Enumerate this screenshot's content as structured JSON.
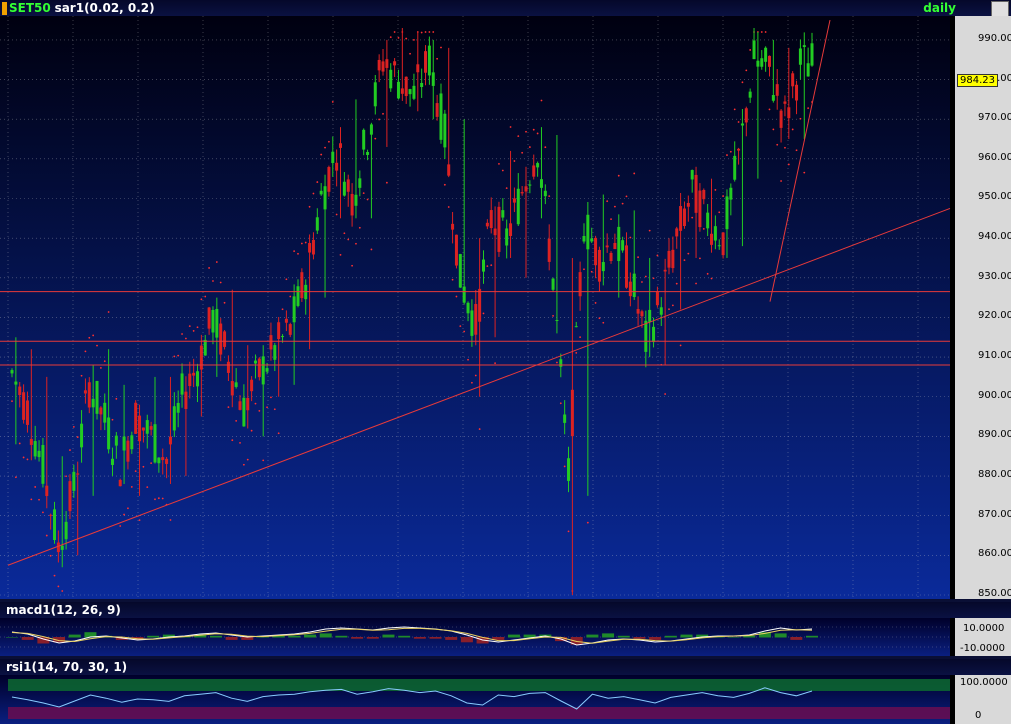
{
  "header": {
    "symbol": "SET50",
    "indicator": "sar1(0.02, 0.2)",
    "period": "daily"
  },
  "price_axis": {
    "ticks": [
      "990.00",
      "980.00",
      "970.00",
      "960.00",
      "950.00",
      "940.00",
      "930.00",
      "920.00",
      "910.00",
      "900.00",
      "890.00",
      "880.00",
      "870.00",
      "860.00",
      "850.00"
    ],
    "last_price": "984.23"
  },
  "macd_panel": {
    "title": "macd1(12, 26, 9)",
    "ticks": [
      "10.0000",
      "-10.0000"
    ]
  },
  "rsi_panel": {
    "title": "rsi1(14, 70, 30, 1)",
    "ticks": [
      "100.0000",
      "0"
    ]
  },
  "colors": {
    "up_candle": "#22cc22",
    "down_candle": "#dd2222",
    "sar": "#ff3030",
    "trendline": "#e83a3a",
    "macd_line": "#ffffff",
    "signal_line": "#e8d060",
    "rsi_line": "#88ccff",
    "grid": "#c8c8c8"
  },
  "chart_data": [
    {
      "type": "candlestick",
      "title": "SET50",
      "ylim": [
        850,
        993
      ],
      "ohlc_waypoints": [
        [
          900,
          915,
          888,
          906
        ],
        [
          906,
          912,
          895,
          897
        ],
        [
          895,
          905,
          880,
          882
        ],
        [
          882,
          885,
          857,
          862
        ],
        [
          862,
          880,
          860,
          877
        ],
        [
          877,
          908,
          875,
          903
        ],
        [
          903,
          912,
          890,
          894
        ],
        [
          894,
          903,
          878,
          883
        ],
        [
          883,
          898,
          875,
          895
        ],
        [
          895,
          905,
          887,
          890
        ],
        [
          890,
          905,
          878,
          884
        ],
        [
          884,
          905,
          880,
          900
        ],
        [
          900,
          910,
          895,
          908
        ],
        [
          908,
          925,
          905,
          920
        ],
        [
          920,
          927,
          905,
          909
        ],
        [
          909,
          913,
          892,
          897
        ],
        [
          897,
          913,
          890,
          906
        ],
        [
          906,
          918,
          900,
          912
        ],
        [
          912,
          922,
          903,
          917
        ],
        [
          917,
          935,
          912,
          930
        ],
        [
          930,
          956,
          925,
          950
        ],
        [
          950,
          968,
          945,
          963
        ],
        [
          963,
          975,
          945,
          950
        ],
        [
          950,
          968,
          945,
          966
        ],
        [
          966,
          990,
          963,
          985
        ],
        [
          985,
          995,
          975,
          980
        ],
        [
          980,
          992,
          972,
          976
        ],
        [
          976,
          990,
          970,
          985
        ],
        [
          985,
          988,
          960,
          966
        ],
        [
          966,
          970,
          925,
          930
        ],
        [
          930,
          940,
          900,
          918
        ],
        [
          918,
          948,
          915,
          945
        ],
        [
          945,
          962,
          935,
          940
        ],
        [
          940,
          958,
          930,
          952
        ],
        [
          952,
          968,
          945,
          963
        ],
        [
          963,
          966,
          928,
          930
        ],
        [
          930,
          935,
          850,
          880
        ],
        [
          880,
          948,
          875,
          944
        ],
        [
          944,
          951,
          930,
          935
        ],
        [
          935,
          946,
          925,
          940
        ],
        [
          940,
          947,
          925,
          930
        ],
        [
          930,
          935,
          910,
          914
        ],
        [
          914,
          928,
          908,
          925
        ],
        [
          925,
          945,
          922,
          940
        ],
        [
          940,
          958,
          935,
          952
        ],
        [
          952,
          955,
          940,
          945
        ],
        [
          945,
          952,
          935,
          940
        ],
        [
          940,
          965,
          938,
          960
        ],
        [
          960,
          992,
          955,
          985
        ],
        [
          985,
          990,
          975,
          982
        ],
        [
          982,
          988,
          965,
          970
        ],
        [
          970,
          986,
          965,
          984
        ]
      ]
    },
    {
      "type": "line",
      "title": "macd1(12, 26, 9)",
      "ylim": [
        -15,
        15
      ],
      "series": [
        {
          "values": [
            5,
            3,
            -2,
            -6,
            -4,
            0,
            1,
            -1,
            -3,
            -2,
            0,
            1,
            3,
            4,
            2,
            0,
            1,
            2,
            3,
            5,
            8,
            9,
            8,
            7,
            9,
            10,
            9,
            8,
            6,
            2,
            -3,
            -5,
            -3,
            -1,
            1,
            -2,
            -8,
            -6,
            -3,
            -2,
            -3,
            -5,
            -4,
            -2,
            0,
            1,
            1,
            2,
            6,
            9,
            7,
            8
          ]
        }
      ]
    },
    {
      "type": "line",
      "title": "rsi1(14, 70, 30, 1)",
      "ylim": [
        0,
        100
      ],
      "series": [
        {
          "values": [
            55,
            48,
            40,
            30,
            45,
            60,
            52,
            42,
            50,
            48,
            44,
            58,
            62,
            66,
            52,
            44,
            56,
            60,
            62,
            68,
            72,
            74,
            62,
            68,
            76,
            72,
            66,
            70,
            58,
            40,
            35,
            60,
            56,
            64,
            66,
            45,
            25,
            62,
            52,
            56,
            48,
            40,
            54,
            60,
            66,
            58,
            54,
            64,
            78,
            66,
            58,
            70
          ]
        }
      ]
    }
  ]
}
